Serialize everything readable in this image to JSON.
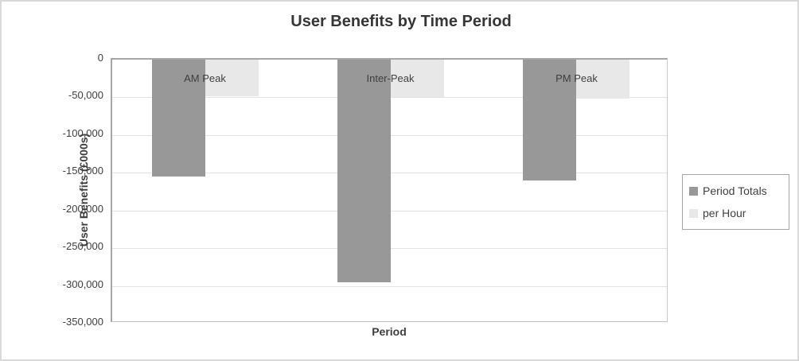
{
  "chart_data": {
    "type": "bar",
    "title": "User Benefits by Time Period",
    "xlabel": "Period",
    "ylabel": "User Benefits (£000s)",
    "categories": [
      "AM Peak",
      "Inter-Peak",
      "PM Peak"
    ],
    "series": [
      {
        "name": "Period Totals",
        "color": "#989898",
        "values": [
          -155000,
          -295000,
          -160000
        ]
      },
      {
        "name": "per Hour",
        "color": "#e8e8e8",
        "values": [
          -48000,
          -50000,
          -52000
        ]
      }
    ],
    "ylim": [
      0,
      -350000
    ],
    "ytick_step": -50000,
    "ytick_labels": [
      "0",
      "-50,000",
      "-100,000",
      "-150,000",
      "-200,000",
      "-250,000",
      "-300,000",
      "-350,000"
    ],
    "grid": true,
    "legend_position": "right",
    "colors": {
      "gridline": "#e3e3e3",
      "axis_line": "#a6a6a6",
      "text": "#404040",
      "frame_border": "#d8d8d8"
    }
  }
}
